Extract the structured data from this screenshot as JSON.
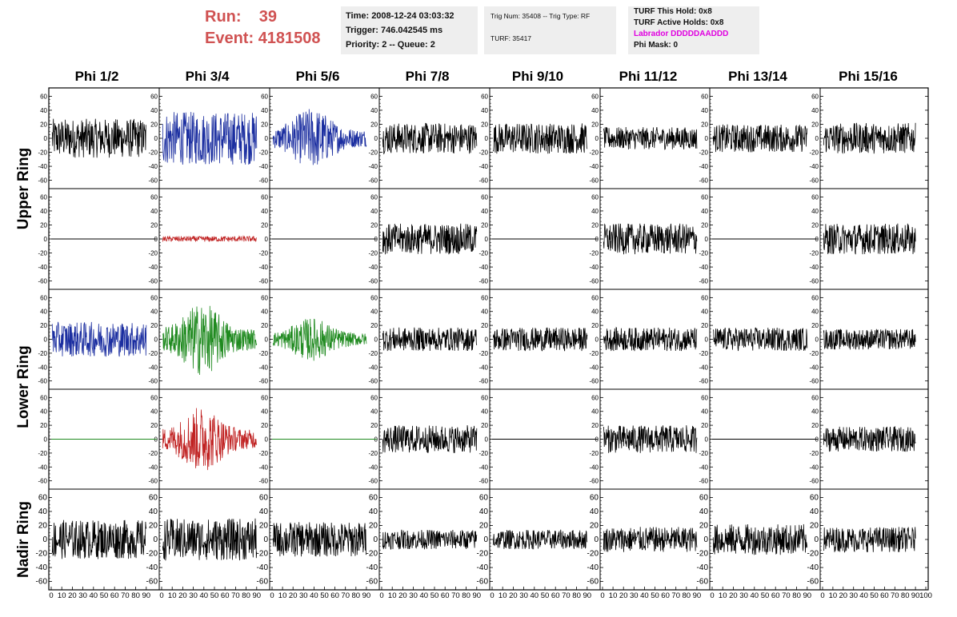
{
  "header": {
    "run_label": "Run:",
    "run_value": "39",
    "event_label": "Event:",
    "event_value": "4181508",
    "time": "Time: 2008-12-24 03:03:32",
    "trigger": "Trigger: 746.042545 ms",
    "priority": "Priority: 2 -- Queue: 2",
    "trig_num": "Trig Num: 35408 -- Trig Type: RF",
    "turf": "TURF: 35417",
    "turf_this_hold": "TURF This Hold: 0x8",
    "turf_active_holds": "TURF Active Holds: 0x8",
    "labrador": "Labrador DDDDDAADDD",
    "phi_mask": "Phi Mask: 0",
    "colors": {
      "run_text": "#d05252",
      "labrador": "#e000e0",
      "box_bg": "#eeeeee"
    }
  },
  "columns": [
    "Phi 1/2",
    "Phi 3/4",
    "Phi 5/6",
    "Phi 7/8",
    "Phi 9/10",
    "Phi 11/12",
    "Phi 13/14",
    "Phi 15/16"
  ],
  "rings": [
    "Upper Ring",
    "Lower Ring",
    "Nadir Ring"
  ],
  "chart_data": {
    "type": "line",
    "xlim": [
      0,
      100
    ],
    "ylim": [
      -65,
      65
    ],
    "y_ticks": [
      60,
      40,
      20,
      0,
      -20,
      -40,
      -60
    ],
    "x_ticks": [
      0,
      10,
      20,
      30,
      40,
      50,
      60,
      70,
      80,
      90,
      100
    ],
    "x_tick_labels_bottom": "0 10 20 30 40 50 60 70 80 90 100",
    "series_colors": {
      "black": "#000000",
      "blue": "#1b2ea0",
      "red": "#c02222",
      "green": "#1f8a1f"
    },
    "panels": [
      {
        "row": 0,
        "col": 0,
        "color": "black",
        "amplitude": 28,
        "envelope": "flat"
      },
      {
        "row": 0,
        "col": 1,
        "color": "blue",
        "amplitude": 38,
        "envelope": "flat"
      },
      {
        "row": 0,
        "col": 2,
        "color": "blue",
        "amplitude": 35,
        "envelope": "burst"
      },
      {
        "row": 0,
        "col": 3,
        "color": "black",
        "amplitude": 22,
        "envelope": "flat"
      },
      {
        "row": 0,
        "col": 4,
        "color": "black",
        "amplitude": 22,
        "envelope": "flat"
      },
      {
        "row": 0,
        "col": 5,
        "color": "black",
        "amplitude": 16,
        "envelope": "flat"
      },
      {
        "row": 0,
        "col": 6,
        "color": "black",
        "amplitude": 20,
        "envelope": "flat"
      },
      {
        "row": 0,
        "col": 7,
        "color": "black",
        "amplitude": 22,
        "envelope": "flat"
      },
      {
        "row": 1,
        "col": 0,
        "color": "black",
        "amplitude": 0,
        "envelope": "flat"
      },
      {
        "row": 1,
        "col": 1,
        "color": "red",
        "amplitude": 4,
        "envelope": "flat"
      },
      {
        "row": 1,
        "col": 2,
        "color": "black",
        "amplitude": 0,
        "envelope": "flat"
      },
      {
        "row": 1,
        "col": 3,
        "color": "black",
        "amplitude": 22,
        "envelope": "flat"
      },
      {
        "row": 1,
        "col": 4,
        "color": "black",
        "amplitude": 0,
        "envelope": "flat"
      },
      {
        "row": 1,
        "col": 5,
        "color": "black",
        "amplitude": 22,
        "envelope": "flat"
      },
      {
        "row": 1,
        "col": 6,
        "color": "black",
        "amplitude": 0,
        "envelope": "flat"
      },
      {
        "row": 1,
        "col": 7,
        "color": "black",
        "amplitude": 22,
        "envelope": "flat"
      },
      {
        "row": 2,
        "col": 0,
        "color": "blue",
        "amplitude": 25,
        "envelope": "flat"
      },
      {
        "row": 2,
        "col": 1,
        "color": "green",
        "amplitude": 42,
        "envelope": "burst"
      },
      {
        "row": 2,
        "col": 2,
        "color": "green",
        "amplitude": 25,
        "envelope": "burst"
      },
      {
        "row": 2,
        "col": 3,
        "color": "black",
        "amplitude": 17,
        "envelope": "flat"
      },
      {
        "row": 2,
        "col": 4,
        "color": "black",
        "amplitude": 17,
        "envelope": "flat"
      },
      {
        "row": 2,
        "col": 5,
        "color": "black",
        "amplitude": 17,
        "envelope": "flat"
      },
      {
        "row": 2,
        "col": 6,
        "color": "black",
        "amplitude": 17,
        "envelope": "flat"
      },
      {
        "row": 2,
        "col": 7,
        "color": "black",
        "amplitude": 15,
        "envelope": "flat"
      },
      {
        "row": 3,
        "col": 0,
        "color": "green",
        "amplitude": 0,
        "envelope": "flat"
      },
      {
        "row": 3,
        "col": 1,
        "color": "red",
        "amplitude": 38,
        "envelope": "burst"
      },
      {
        "row": 3,
        "col": 2,
        "color": "green",
        "amplitude": 0,
        "envelope": "flat"
      },
      {
        "row": 3,
        "col": 3,
        "color": "black",
        "amplitude": 20,
        "envelope": "flat"
      },
      {
        "row": 3,
        "col": 4,
        "color": "black",
        "amplitude": 0,
        "envelope": "flat"
      },
      {
        "row": 3,
        "col": 5,
        "color": "black",
        "amplitude": 20,
        "envelope": "flat"
      },
      {
        "row": 3,
        "col": 6,
        "color": "black",
        "amplitude": 0,
        "envelope": "flat"
      },
      {
        "row": 3,
        "col": 7,
        "color": "black",
        "amplitude": 18,
        "envelope": "flat"
      },
      {
        "row": 4,
        "col": 0,
        "color": "black",
        "amplitude": 28,
        "envelope": "flat"
      },
      {
        "row": 4,
        "col": 1,
        "color": "black",
        "amplitude": 30,
        "envelope": "flat"
      },
      {
        "row": 4,
        "col": 2,
        "color": "black",
        "amplitude": 25,
        "envelope": "flat"
      },
      {
        "row": 4,
        "col": 3,
        "color": "black",
        "amplitude": 14,
        "envelope": "flat"
      },
      {
        "row": 4,
        "col": 4,
        "color": "black",
        "amplitude": 14,
        "envelope": "flat"
      },
      {
        "row": 4,
        "col": 5,
        "color": "black",
        "amplitude": 18,
        "envelope": "flat"
      },
      {
        "row": 4,
        "col": 6,
        "color": "black",
        "amplitude": 22,
        "envelope": "flat"
      },
      {
        "row": 4,
        "col": 7,
        "color": "black",
        "amplitude": 18,
        "envelope": "flat"
      }
    ]
  }
}
